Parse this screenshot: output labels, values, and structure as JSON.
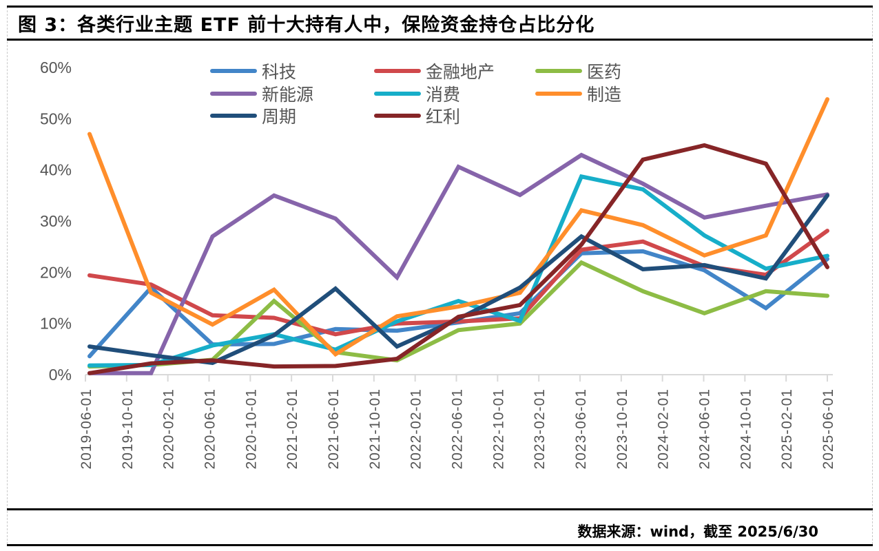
{
  "header": {
    "title": "图 3：各类行业主题 ETF 前十大持有人中，保险资金持仓占比分化"
  },
  "footer": {
    "source": "数据来源：wind，截至 2025/6/30"
  },
  "chart_data": {
    "type": "line",
    "title": "各类行业主题 ETF 前十大持有人中，保险资金持仓占比分化",
    "xlabel": "",
    "ylabel": "",
    "ylim": [
      0,
      60
    ],
    "y_ticks": [
      "0%",
      "10%",
      "20%",
      "30%",
      "40%",
      "50%",
      "60%"
    ],
    "y_tick_values": [
      0,
      10,
      20,
      30,
      40,
      50,
      60
    ],
    "x_tick_labels": [
      "2019-06-01",
      "2019-10-01",
      "2020-02-01",
      "2020-06-01",
      "2020-10-01",
      "2021-02-01",
      "2021-06-01",
      "2021-10-01",
      "2022-02-01",
      "2022-06-01",
      "2022-10-01",
      "2023-02-01",
      "2023-06-01",
      "2023-10-01",
      "2024-02-01",
      "2024-06-01",
      "2024-10-01",
      "2025-02-01",
      "2025-06-01"
    ],
    "x_range": [
      "2019-06-01",
      "2025-06-01"
    ],
    "x": [
      "2019-06",
      "2019-12",
      "2020-06",
      "2020-12",
      "2021-06",
      "2021-12",
      "2022-06",
      "2022-12",
      "2023-06",
      "2023-12",
      "2024-06",
      "2024-12",
      "2025-06"
    ],
    "grid": false,
    "legend_position": "top",
    "series": [
      {
        "name": "科技",
        "color": "#4285C8",
        "values": [
          3.6,
          17.0,
          5.9,
          6.0,
          8.9,
          8.6,
          10.2,
          12.0,
          23.7,
          24.1,
          20.4,
          13.0,
          22.6
        ]
      },
      {
        "name": "金融地产",
        "color": "#D0484B",
        "values": [
          19.4,
          17.6,
          11.6,
          11.1,
          7.9,
          10.0,
          10.4,
          11.0,
          24.4,
          26.0,
          21.2,
          19.5,
          28.1
        ]
      },
      {
        "name": "医药",
        "color": "#8DBC45",
        "values": [
          1.6,
          1.9,
          2.9,
          14.4,
          4.4,
          2.8,
          8.7,
          10.0,
          21.9,
          16.3,
          12.0,
          16.3,
          15.4
        ]
      },
      {
        "name": "新能源",
        "color": "#8664AA",
        "values": [
          0.3,
          0.3,
          27.0,
          35.0,
          30.5,
          19.0,
          40.6,
          35.1,
          42.9,
          37.3,
          30.7,
          33.0,
          35.2
        ]
      },
      {
        "name": "消费",
        "color": "#17AEC9",
        "values": [
          1.8,
          1.9,
          5.7,
          7.9,
          4.9,
          10.4,
          14.4,
          10.5,
          38.7,
          36.2,
          27.2,
          20.7,
          23.2
        ]
      },
      {
        "name": "制造",
        "color": "#FF8E2B",
        "values": [
          47.0,
          16.0,
          9.8,
          16.6,
          4.0,
          11.4,
          13.3,
          16.0,
          32.1,
          29.2,
          23.3,
          27.2,
          53.8
        ]
      },
      {
        "name": "周期",
        "color": "#204E7A",
        "values": [
          5.5,
          3.8,
          2.3,
          7.7,
          16.8,
          5.5,
          10.9,
          17.0,
          27.0,
          20.6,
          21.4,
          18.8,
          35.0
        ]
      },
      {
        "name": "红利",
        "color": "#862527",
        "values": [
          0.3,
          2.2,
          2.8,
          1.6,
          1.7,
          3.1,
          11.3,
          13.6,
          25.4,
          42.0,
          44.8,
          41.2,
          21.0
        ]
      }
    ]
  }
}
